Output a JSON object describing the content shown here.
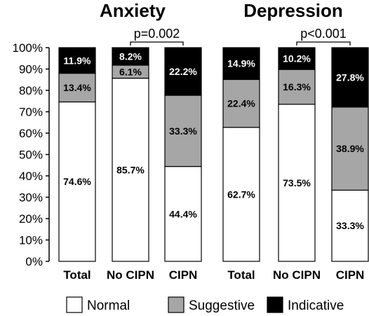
{
  "chart_data": {
    "type": "bar",
    "stacked": true,
    "ylim": [
      0,
      100
    ],
    "yticks": [
      "0%",
      "10%",
      "20%",
      "30%",
      "40%",
      "50%",
      "60%",
      "70%",
      "80%",
      "90%",
      "100%"
    ],
    "legend": {
      "placement": "bottom",
      "items": [
        {
          "name": "Normal",
          "color": "#ffffff"
        },
        {
          "name": "Suggestive",
          "color": "#a6a6a6"
        },
        {
          "name": "Indicative",
          "color": "#000000"
        }
      ]
    },
    "panels": [
      {
        "title": "Anxiety",
        "comparison": "p=0.002",
        "categories": [
          "Total",
          "No CIPN",
          "CIPN"
        ],
        "series": [
          {
            "name": "Normal",
            "values": [
              74.6,
              85.7,
              44.4
            ],
            "labels": [
              "74.6%",
              "85.7%",
              "44.4%"
            ]
          },
          {
            "name": "Suggestive",
            "values": [
              13.4,
              6.1,
              33.3
            ],
            "labels": [
              "13.4%",
              "6.1%",
              "33.3%"
            ]
          },
          {
            "name": "Indicative",
            "values": [
              11.9,
              8.2,
              22.2
            ],
            "labels": [
              "11.9%",
              "8.2%",
              "22.2%"
            ]
          }
        ]
      },
      {
        "title": "Depression",
        "comparison": "p<0.001",
        "categories": [
          "Total",
          "No CIPN",
          "CIPN"
        ],
        "series": [
          {
            "name": "Normal",
            "values": [
              62.7,
              73.5,
              33.3
            ],
            "labels": [
              "62.7%",
              "73.5%",
              "33.3%"
            ]
          },
          {
            "name": "Suggestive",
            "values": [
              22.4,
              16.3,
              38.9
            ],
            "labels": [
              "22.4%",
              "16.3%",
              "38.9%"
            ]
          },
          {
            "name": "Indicative",
            "values": [
              14.9,
              10.2,
              27.8
            ],
            "labels": [
              "14.9%",
              "10.2%",
              "27.8%"
            ]
          }
        ]
      }
    ]
  }
}
